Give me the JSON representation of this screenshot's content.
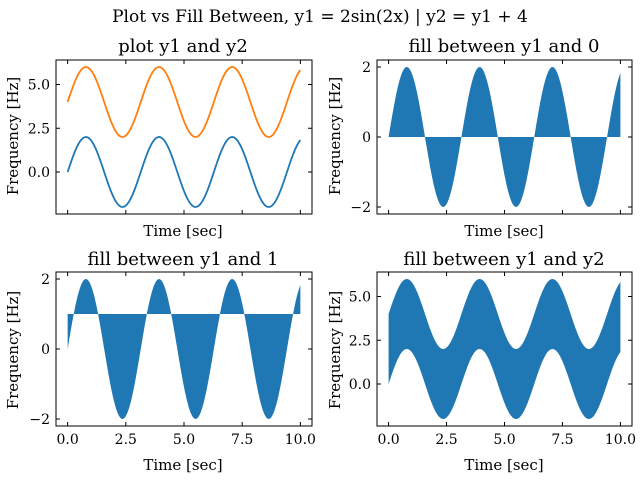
{
  "figure": {
    "suptitle": "Plot vs Fill Between, y1 = 2sin(2x) | y2 = y1 + 4",
    "colors": {
      "blue": "#1f77b4",
      "orange": "#ff7f0e",
      "axes": "#000000"
    }
  },
  "chart_data": [
    {
      "type": "line",
      "title": "plot y1 and y2",
      "xlabel": "Time [sec]",
      "ylabel": "Frequency [Hz]",
      "xlim": [
        -0.5,
        10.5
      ],
      "ylim": [
        -2.4,
        6.4
      ],
      "xticks": [
        0,
        2.5,
        5,
        7.5,
        10
      ],
      "yticks": [
        0,
        2.5,
        5
      ],
      "ytick_labels": [
        "0.0",
        "2.5",
        "5.0"
      ],
      "show_xtick_labels": false,
      "x": {
        "start": 0,
        "end": 10,
        "count": 201
      },
      "series": [
        {
          "formula": "2*sin(2x)",
          "color": "#1f77b4"
        },
        {
          "formula": "2*sin(2x) + 4",
          "color": "#ff7f0e"
        }
      ]
    },
    {
      "type": "area",
      "title": "fill between y1 and 0",
      "xlabel": "Time [sec]",
      "ylabel": "Frequency [Hz]",
      "xlim": [
        -0.5,
        10.5
      ],
      "ylim": [
        -2.2,
        2.2
      ],
      "xticks": [
        0,
        2.5,
        5,
        7.5,
        10
      ],
      "yticks": [
        -2,
        0,
        2
      ],
      "ytick_labels": [
        "−2",
        "0",
        "2"
      ],
      "show_xtick_labels": false,
      "x": {
        "start": 0,
        "end": 10,
        "count": 201
      },
      "fill_between": {
        "upper": "2*sin(2x)",
        "lower": "0",
        "color": "#1f77b4"
      }
    },
    {
      "type": "area",
      "title": "fill between y1 and 1",
      "xlabel": "Time [sec]",
      "ylabel": "Frequency [Hz]",
      "xlim": [
        -0.5,
        10.5
      ],
      "ylim": [
        -2.2,
        2.2
      ],
      "xticks": [
        0,
        2.5,
        5,
        7.5,
        10
      ],
      "xtick_labels": [
        "0.0",
        "2.5",
        "5.0",
        "7.5",
        "10.0"
      ],
      "yticks": [
        -2,
        0,
        2
      ],
      "ytick_labels": [
        "−2",
        "0",
        "2"
      ],
      "show_xtick_labels": true,
      "x": {
        "start": 0,
        "end": 10,
        "count": 201
      },
      "fill_between": {
        "upper": "2*sin(2x)",
        "lower": "1",
        "color": "#1f77b4"
      }
    },
    {
      "type": "area",
      "title": "fill between y1 and y2",
      "xlabel": "Time [sec]",
      "ylabel": "Frequency [Hz]",
      "xlim": [
        -0.5,
        10.5
      ],
      "ylim": [
        -2.4,
        6.4
      ],
      "xticks": [
        0,
        2.5,
        5,
        7.5,
        10
      ],
      "xtick_labels": [
        "0.0",
        "2.5",
        "5.0",
        "7.5",
        "10.0"
      ],
      "yticks": [
        0,
        2.5,
        5
      ],
      "ytick_labels": [
        "0.0",
        "2.5",
        "5.0"
      ],
      "show_xtick_labels": true,
      "x": {
        "start": 0,
        "end": 10,
        "count": 201
      },
      "fill_between": {
        "upper": "2*sin(2x) + 4",
        "lower": "2*sin(2x)",
        "color": "#1f77b4"
      }
    }
  ]
}
